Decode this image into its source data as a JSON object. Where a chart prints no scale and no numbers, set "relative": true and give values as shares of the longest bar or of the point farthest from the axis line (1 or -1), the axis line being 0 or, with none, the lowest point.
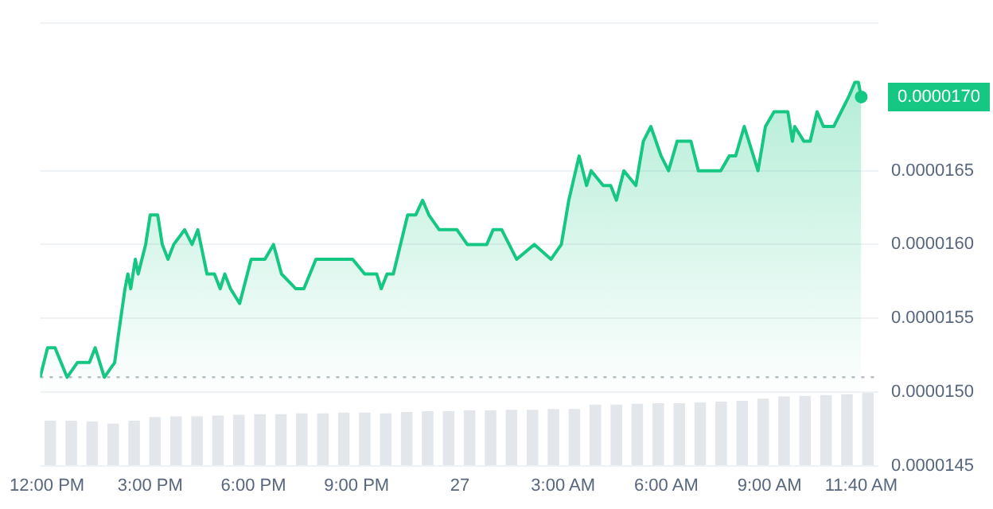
{
  "chart_data": [
    {
      "type": "area",
      "xlim": [
        "--03-26T11:48",
        "--03-27T12:10"
      ],
      "ylim": [
        1.45e-05,
        1.75e-05
      ],
      "xticks": [
        {
          "value": "--03-26T12:00",
          "label": "12:00 PM"
        },
        {
          "value": "--03-26T15:00",
          "label": "3:00 PM"
        },
        {
          "value": "--03-26T18:00",
          "label": "6:00 PM"
        },
        {
          "value": "--03-26T21:00",
          "label": "9:00 PM"
        },
        {
          "value": "--03-27T00:00",
          "label": "27"
        },
        {
          "value": "--03-27T03:00",
          "label": "3:00 AM"
        },
        {
          "value": "--03-27T06:00",
          "label": "6:00 AM"
        },
        {
          "value": "--03-27T09:00",
          "label": "9:00 AM"
        },
        {
          "value": "--03-27T11:40",
          "label": "11:40 AM"
        }
      ],
      "yticks": [
        {
          "value": 1.45e-05,
          "label": "0.0000145"
        },
        {
          "value": 1.5e-05,
          "label": "0.0000150"
        },
        {
          "value": 1.55e-05,
          "label": "0.0000155"
        },
        {
          "value": 1.6e-05,
          "label": "0.0000160"
        },
        {
          "value": 1.65e-05,
          "label": "0.0000165"
        },
        {
          "value": 1.75e-05,
          "label": null
        }
      ],
      "grid": "y",
      "x": [
        "--03-26T11:48",
        "--03-26T12:01",
        "--03-26T12:14",
        "--03-26T12:35",
        "--03-26T12:53",
        "--03-26T13:14",
        "--03-26T13:24",
        "--03-26T13:40",
        "--03-26T13:58",
        "--03-26T14:05",
        "--03-26T14:16",
        "--03-26T14:21",
        "--03-26T14:26",
        "--03-26T14:34",
        "--03-26T14:39",
        "--03-26T14:52",
        "--03-26T15:00",
        "--03-26T15:08",
        "--03-26T15:13",
        "--03-26T15:21",
        "--03-26T15:31",
        "--03-26T15:41",
        "--03-26T16:00",
        "--03-26T16:13",
        "--03-26T16:23",
        "--03-26T16:39",
        "--03-26T16:52",
        "--03-26T17:02",
        "--03-26T17:10",
        "--03-26T17:20",
        "--03-26T17:36",
        "--03-26T17:56",
        "--03-26T18:10",
        "--03-26T18:20",
        "--03-26T18:35",
        "--03-26T18:49",
        "--03-26T19:14",
        "--03-26T19:28",
        "--03-26T19:49",
        "--03-26T20:07",
        "--03-26T20:19",
        "--03-26T20:32",
        "--03-26T20:53",
        "--03-26T21:14",
        "--03-26T21:27",
        "--03-26T21:35",
        "--03-26T21:43",
        "--03-26T21:53",
        "--03-26T22:04",
        "--03-26T22:29",
        "--03-26T22:43",
        "--03-26T22:55",
        "--03-26T23:06",
        "--03-26T23:24",
        "--03-26T23:37",
        "--03-26T23:55",
        "--03-27T00:13",
        "--03-27T00:34",
        "--03-27T00:47",
        "--03-27T00:58",
        "--03-27T01:13",
        "--03-27T01:26",
        "--03-27T01:39",
        "--03-27T02:10",
        "--03-27T02:39",
        "--03-27T02:57",
        "--03-27T03:10",
        "--03-27T03:28",
        "--03-27T03:41",
        "--03-27T03:49",
        "--03-27T04:10",
        "--03-27T04:23",
        "--03-27T04:33",
        "--03-27T04:46",
        "--03-27T05:07",
        "--03-27T05:20",
        "--03-27T05:33",
        "--03-27T05:51",
        "--03-27T06:04",
        "--03-27T06:19",
        "--03-27T06:43",
        "--03-27T06:56",
        "--03-27T07:14",
        "--03-27T07:35",
        "--03-27T07:50",
        "--03-27T08:01",
        "--03-27T08:16",
        "--03-27T08:40",
        "--03-27T08:53",
        "--03-27T09:08",
        "--03-27T09:32",
        "--03-27T09:40",
        "--03-27T09:44",
        "--03-27T10:00",
        "--03-27T10:11",
        "--03-27T10:23",
        "--03-27T10:34",
        "--03-27T10:52",
        "--03-27T11:05",
        "--03-27T11:18",
        "--03-27T11:29",
        "--03-27T11:35",
        "--03-27T11:40"
      ],
      "series": [
        {
          "color": "#16c784",
          "values": [
            1.51e-05,
            1.53e-05,
            1.53e-05,
            1.51e-05,
            1.52e-05,
            1.52e-05,
            1.53e-05,
            1.51e-05,
            1.52e-05,
            1.54e-05,
            1.57e-05,
            1.58e-05,
            1.57e-05,
            1.59e-05,
            1.58e-05,
            1.6e-05,
            1.62e-05,
            1.62e-05,
            1.62e-05,
            1.6e-05,
            1.59e-05,
            1.6e-05,
            1.61e-05,
            1.6e-05,
            1.61e-05,
            1.58e-05,
            1.58e-05,
            1.57e-05,
            1.58e-05,
            1.57e-05,
            1.56e-05,
            1.59e-05,
            1.59e-05,
            1.59e-05,
            1.6e-05,
            1.58e-05,
            1.57e-05,
            1.57e-05,
            1.59e-05,
            1.59e-05,
            1.59e-05,
            1.59e-05,
            1.59e-05,
            1.58e-05,
            1.58e-05,
            1.58e-05,
            1.57e-05,
            1.58e-05,
            1.58e-05,
            1.62e-05,
            1.62e-05,
            1.63e-05,
            1.62e-05,
            1.61e-05,
            1.61e-05,
            1.61e-05,
            1.6e-05,
            1.6e-05,
            1.6e-05,
            1.61e-05,
            1.61e-05,
            1.6e-05,
            1.59e-05,
            1.6e-05,
            1.59e-05,
            1.6e-05,
            1.63e-05,
            1.66e-05,
            1.64e-05,
            1.65e-05,
            1.64e-05,
            1.64e-05,
            1.63e-05,
            1.65e-05,
            1.64e-05,
            1.67e-05,
            1.68e-05,
            1.66e-05,
            1.65e-05,
            1.67e-05,
            1.67e-05,
            1.65e-05,
            1.65e-05,
            1.65e-05,
            1.66e-05,
            1.66e-05,
            1.68e-05,
            1.65e-05,
            1.68e-05,
            1.69e-05,
            1.69e-05,
            1.67e-05,
            1.68e-05,
            1.67e-05,
            1.67e-05,
            1.69e-05,
            1.68e-05,
            1.68e-05,
            1.69e-05,
            1.7e-05,
            1.71e-05,
            1.71e-05,
            1.7e-05
          ]
        }
      ],
      "ref_lines": [
        {
          "axis": "y",
          "value": 1.51e-05,
          "color": "#b8bcc4",
          "line_style": "dotted"
        }
      ],
      "annotations": [
        {
          "text": "0.0000170",
          "x": "--03-27T11:40",
          "y": 1.7e-05
        }
      ]
    },
    {
      "type": "bar",
      "relative": true,
      "color": "#e3e6ea",
      "categories": [
        null,
        null,
        null,
        null,
        null,
        null,
        null,
        null,
        null,
        null,
        null,
        null,
        null,
        null,
        null,
        null,
        null,
        null,
        null,
        null,
        null,
        null,
        null,
        null,
        null,
        null,
        null,
        null,
        null,
        null,
        null,
        null,
        null,
        null,
        null,
        null,
        null,
        null,
        null,
        null
      ],
      "values": [
        0.62,
        0.62,
        0.61,
        0.58,
        0.62,
        0.67,
        0.68,
        0.68,
        0.69,
        0.7,
        0.71,
        0.71,
        0.72,
        0.72,
        0.73,
        0.73,
        0.72,
        0.74,
        0.75,
        0.75,
        0.76,
        0.76,
        0.77,
        0.77,
        0.78,
        0.78,
        0.84,
        0.84,
        0.85,
        0.86,
        0.86,
        0.87,
        0.88,
        0.89,
        0.92,
        0.95,
        0.96,
        0.97,
        0.98,
        1
      ]
    }
  ]
}
